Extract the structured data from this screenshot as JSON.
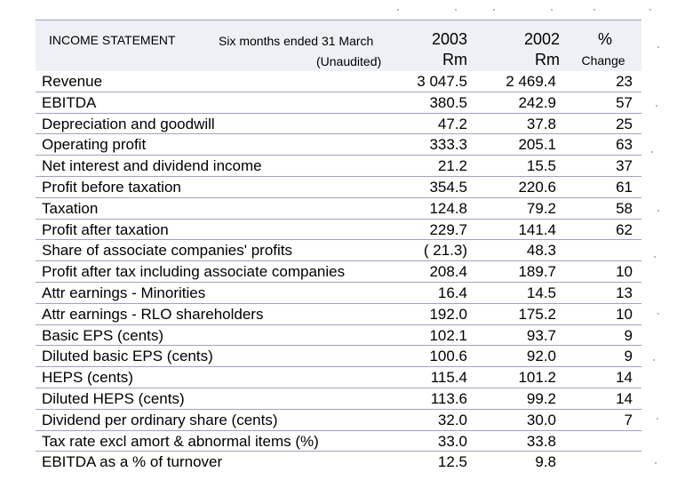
{
  "header": {
    "title": "INCOME STATEMENT",
    "period": "Six months ended 31 March",
    "unaudited": "(Unaudited)",
    "col_2003_year": "2003",
    "col_2003_unit": "Rm",
    "col_2002_year": "2002",
    "col_2002_unit": "Rm",
    "col_change_symbol": "%",
    "col_change_label": "Change"
  },
  "rows": [
    {
      "label": "Revenue",
      "y2003": "3 047.5",
      "y2002": "2 469.4",
      "change": "23"
    },
    {
      "label": "EBITDA",
      "y2003": "380.5",
      "y2002": "242.9",
      "change": "57"
    },
    {
      "label": "Depreciation and goodwill",
      "y2003": "47.2",
      "y2002": "37.8",
      "change": "25"
    },
    {
      "label": "Operating profit",
      "y2003": "333.3",
      "y2002": "205.1",
      "change": "63"
    },
    {
      "label": "Net interest and dividend income",
      "y2003": "21.2",
      "y2002": "15.5",
      "change": "37"
    },
    {
      "label": "Profit before taxation",
      "y2003": "354.5",
      "y2002": "220.6",
      "change": "61"
    },
    {
      "label": "Taxation",
      "y2003": "124.8",
      "y2002": "79.2",
      "change": "58"
    },
    {
      "label": "Profit after taxation",
      "y2003": "229.7",
      "y2002": "141.4",
      "change": "62"
    },
    {
      "label": "Share of associate companies' profits",
      "y2003": "( 21.3)",
      "y2002": "48.3",
      "change": ""
    },
    {
      "label": "Profit after tax including associate companies",
      "y2003": "208.4",
      "y2002": "189.7",
      "change": "10"
    },
    {
      "label": "Attr earnings - Minorities",
      "y2003": "16.4",
      "y2002": "14.5",
      "change": "13"
    },
    {
      "label": "Attr earnings - RLO shareholders",
      "y2003": "192.0",
      "y2002": "175.2",
      "change": "10"
    },
    {
      "label": "Basic EPS  (cents)",
      "y2003": "102.1",
      "y2002": "93.7",
      "change": "9"
    },
    {
      "label": "Diluted basic EPS (cents)",
      "y2003": "100.6",
      "y2002": "92.0",
      "change": "9"
    },
    {
      "label": "HEPS (cents)",
      "y2003": "115.4",
      "y2002": "101.2",
      "change": "14"
    },
    {
      "label": "Diluted HEPS  (cents)",
      "y2003": "113.6",
      "y2002": "99.2",
      "change": "14"
    },
    {
      "label": "Dividend per ordinary share (cents)",
      "y2003": "32.0",
      "y2002": "30.0",
      "change": "7"
    },
    {
      "label": "Tax rate excl amort & abnormal items (%)",
      "y2003": "33.0",
      "y2002": "33.8",
      "change": ""
    },
    {
      "label": "EBITDA as a % of turnover",
      "y2003": "12.5",
      "y2002": "9.8",
      "change": ""
    }
  ]
}
